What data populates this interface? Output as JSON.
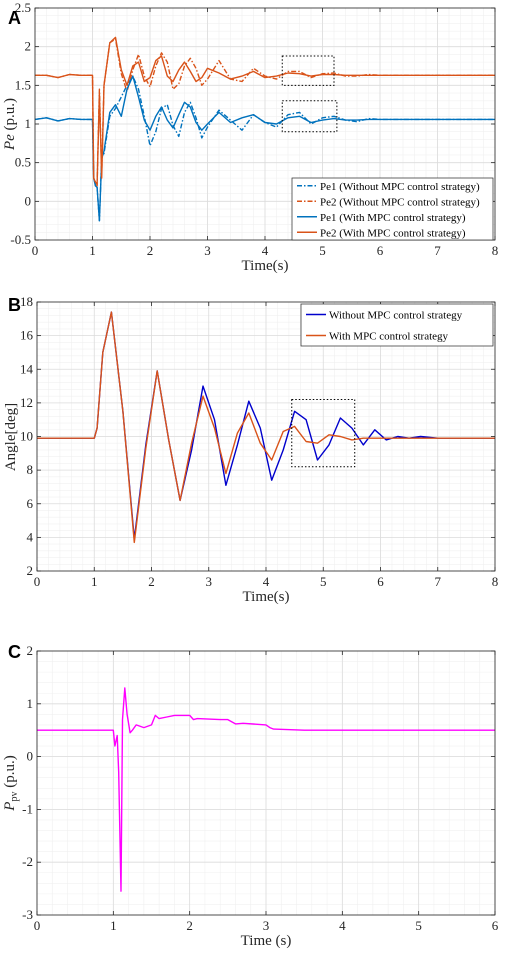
{
  "chart_data": [
    {
      "panel": "A",
      "type": "line",
      "xlabel": "Time(s)",
      "ylabel": "Pe (p.u.)",
      "xlim": [
        0,
        8
      ],
      "ylim": [
        -0.5,
        2.5
      ],
      "xticks": [
        "0",
        "1",
        "2",
        "3",
        "4",
        "5",
        "6",
        "7",
        "8"
      ],
      "yticks": [
        "-0.5",
        "0",
        "0.5",
        "1",
        "1.5",
        "2",
        "2.5"
      ],
      "grid": true,
      "minor_grid": true,
      "legend_position": "bottom-right",
      "insets": [
        {
          "x": [
            4.3,
            5.2
          ],
          "y": [
            1.5,
            1.88
          ]
        },
        {
          "x": [
            4.3,
            5.25
          ],
          "y": [
            0.9,
            1.3
          ]
        }
      ],
      "series": [
        {
          "name": "Pe1 (Without MPC control strategy)",
          "color": "#0072BD",
          "dash": true,
          "x": [
            0,
            0.2,
            0.4,
            0.6,
            0.8,
            1.0,
            1.02,
            1.05,
            1.08,
            1.12,
            1.16,
            1.2,
            1.3,
            1.4,
            1.5,
            1.6,
            1.7,
            1.8,
            1.9,
            2.0,
            2.1,
            2.2,
            2.3,
            2.4,
            2.5,
            2.6,
            2.7,
            2.8,
            2.9,
            3.0,
            3.2,
            3.4,
            3.6,
            3.8,
            4.0,
            4.2,
            4.4,
            4.6,
            4.8,
            5.0,
            5.2,
            5.4,
            5.6,
            5.8,
            6.0,
            6.5,
            7.0,
            7.5,
            8.0
          ],
          "y": [
            1.06,
            1.08,
            1.04,
            1.07,
            1.06,
            1.06,
            0.3,
            0.22,
            0.18,
            -0.25,
            0.58,
            0.62,
            1.1,
            1.2,
            1.35,
            1.5,
            1.62,
            1.45,
            1.1,
            0.72,
            0.9,
            1.2,
            1.25,
            0.98,
            0.84,
            1.15,
            1.28,
            1.08,
            0.82,
            0.96,
            1.18,
            1.05,
            0.92,
            1.12,
            1.02,
            0.96,
            1.12,
            1.15,
            1.0,
            1.08,
            1.1,
            1.05,
            1.03,
            1.07,
            1.06,
            1.06,
            1.06,
            1.06,
            1.06
          ]
        },
        {
          "name": "Pe2 (Without MPC control strategy)",
          "color": "#D95319",
          "dash": true,
          "x": [
            0,
            0.2,
            0.4,
            0.6,
            0.8,
            1.0,
            1.02,
            1.05,
            1.08,
            1.12,
            1.16,
            1.2,
            1.3,
            1.4,
            1.5,
            1.6,
            1.7,
            1.8,
            1.9,
            2.0,
            2.1,
            2.2,
            2.3,
            2.4,
            2.5,
            2.6,
            2.7,
            2.8,
            2.9,
            3.0,
            3.2,
            3.4,
            3.6,
            3.8,
            4.0,
            4.2,
            4.4,
            4.6,
            4.8,
            5.0,
            5.2,
            5.4,
            5.6,
            5.8,
            6.0,
            6.5,
            7.0,
            7.5,
            8.0
          ],
          "y": [
            1.63,
            1.63,
            1.6,
            1.64,
            1.63,
            1.63,
            0.3,
            0.25,
            0.2,
            1.45,
            0.35,
            1.5,
            2.05,
            2.1,
            1.65,
            1.42,
            1.7,
            1.9,
            1.62,
            1.48,
            1.75,
            1.92,
            1.8,
            1.45,
            1.52,
            1.75,
            1.85,
            1.72,
            1.5,
            1.58,
            1.82,
            1.58,
            1.55,
            1.72,
            1.62,
            1.58,
            1.68,
            1.68,
            1.6,
            1.65,
            1.66,
            1.62,
            1.62,
            1.64,
            1.63,
            1.63,
            1.63,
            1.63,
            1.63
          ]
        },
        {
          "name": "Pe1 (With MPC control strategy)",
          "color": "#0072BD",
          "dash": false,
          "x": [
            0,
            0.2,
            0.4,
            0.6,
            0.8,
            1.0,
            1.02,
            1.05,
            1.08,
            1.12,
            1.16,
            1.2,
            1.3,
            1.4,
            1.5,
            1.6,
            1.7,
            1.8,
            1.9,
            2.0,
            2.1,
            2.2,
            2.3,
            2.4,
            2.5,
            2.6,
            2.7,
            2.8,
            2.9,
            3.0,
            3.2,
            3.4,
            3.6,
            3.8,
            4.0,
            4.2,
            4.4,
            4.6,
            4.8,
            5.0,
            5.2,
            5.4,
            5.6,
            5.8,
            6.0,
            6.5,
            7.0,
            7.5,
            8.0
          ],
          "y": [
            1.06,
            1.08,
            1.04,
            1.07,
            1.06,
            1.06,
            0.3,
            0.2,
            0.18,
            -0.25,
            0.55,
            0.65,
            1.15,
            1.25,
            1.1,
            1.45,
            1.62,
            1.35,
            1.05,
            0.92,
            1.1,
            1.22,
            1.05,
            0.95,
            1.12,
            1.28,
            1.22,
            1.02,
            0.92,
            1.0,
            1.15,
            1.02,
            1.08,
            1.12,
            1.02,
            1.0,
            1.08,
            1.1,
            1.02,
            1.05,
            1.07,
            1.05,
            1.05,
            1.06,
            1.06,
            1.06,
            1.06,
            1.06,
            1.06
          ]
        },
        {
          "name": "Pe2 (With MPC control strategy)",
          "color": "#D95319",
          "dash": false,
          "x": [
            0,
            0.2,
            0.4,
            0.6,
            0.8,
            1.0,
            1.02,
            1.05,
            1.08,
            1.12,
            1.16,
            1.2,
            1.3,
            1.4,
            1.5,
            1.6,
            1.7,
            1.8,
            1.9,
            2.0,
            2.1,
            2.2,
            2.3,
            2.4,
            2.5,
            2.6,
            2.7,
            2.8,
            2.9,
            3.0,
            3.2,
            3.4,
            3.6,
            3.8,
            4.0,
            4.2,
            4.4,
            4.6,
            4.8,
            5.0,
            5.2,
            5.4,
            5.6,
            5.8,
            6.0,
            6.5,
            7.0,
            7.5,
            8.0
          ],
          "y": [
            1.63,
            1.63,
            1.6,
            1.64,
            1.63,
            1.63,
            0.3,
            0.25,
            0.22,
            1.4,
            0.3,
            1.5,
            2.05,
            2.12,
            1.7,
            1.5,
            1.75,
            1.8,
            1.55,
            1.6,
            1.82,
            1.88,
            1.62,
            1.55,
            1.7,
            1.8,
            1.68,
            1.55,
            1.6,
            1.72,
            1.66,
            1.58,
            1.62,
            1.68,
            1.6,
            1.62,
            1.66,
            1.65,
            1.62,
            1.64,
            1.64,
            1.63,
            1.63,
            1.63,
            1.63,
            1.63,
            1.63,
            1.63,
            1.63
          ]
        }
      ]
    },
    {
      "panel": "B",
      "type": "line",
      "xlabel": "Time(s)",
      "ylabel": "Angle[deg]",
      "xlim": [
        0,
        8
      ],
      "ylim": [
        2,
        18
      ],
      "xticks": [
        "0",
        "1",
        "2",
        "3",
        "4",
        "5",
        "6",
        "7",
        "8"
      ],
      "yticks": [
        "2",
        "4",
        "6",
        "8",
        "10",
        "12",
        "14",
        "16",
        "18"
      ],
      "grid": true,
      "minor_grid": true,
      "legend_position": "top-right",
      "insets": [
        {
          "x": [
            4.45,
            5.55
          ],
          "y": [
            8.2,
            12.2
          ]
        }
      ],
      "series": [
        {
          "name": "Without MPC control strategy",
          "color": "#0000CC",
          "dash": false,
          "x": [
            0,
            0.5,
            1.0,
            1.05,
            1.15,
            1.3,
            1.5,
            1.7,
            1.9,
            2.1,
            2.3,
            2.5,
            2.7,
            2.9,
            3.1,
            3.3,
            3.5,
            3.7,
            3.9,
            4.1,
            4.3,
            4.5,
            4.7,
            4.9,
            5.1,
            5.3,
            5.5,
            5.7,
            5.9,
            6.1,
            6.3,
            6.5,
            6.7,
            7.0,
            7.5,
            8.0
          ],
          "y": [
            9.9,
            9.9,
            9.9,
            10.5,
            15.0,
            17.4,
            11.5,
            3.9,
            9.5,
            13.9,
            9.8,
            6.2,
            9.2,
            13.0,
            11.0,
            7.1,
            9.5,
            12.1,
            10.5,
            7.4,
            9.2,
            11.5,
            11.0,
            8.6,
            9.5,
            11.1,
            10.5,
            9.5,
            10.4,
            9.8,
            10.0,
            9.9,
            10.0,
            9.9,
            9.9,
            9.9
          ]
        },
        {
          "name": "With MPC control strategy",
          "color": "#D95319",
          "dash": false,
          "x": [
            0,
            0.5,
            1.0,
            1.05,
            1.15,
            1.3,
            1.5,
            1.7,
            1.9,
            2.1,
            2.3,
            2.5,
            2.7,
            2.9,
            3.1,
            3.3,
            3.5,
            3.7,
            3.9,
            4.1,
            4.3,
            4.5,
            4.7,
            4.9,
            5.1,
            5.3,
            5.5,
            5.7,
            5.9,
            6.1,
            6.3,
            6.5,
            6.7,
            7.0,
            7.5,
            8.0
          ],
          "y": [
            9.9,
            9.9,
            9.9,
            10.5,
            15.0,
            17.4,
            11.5,
            3.7,
            9.3,
            13.9,
            9.8,
            6.2,
            9.6,
            12.4,
            10.5,
            7.8,
            10.2,
            11.4,
            9.6,
            8.6,
            10.3,
            10.6,
            9.7,
            9.6,
            10.1,
            10.0,
            9.8,
            9.9,
            9.9,
            9.9,
            9.9,
            9.9,
            9.9,
            9.9,
            9.9,
            9.9
          ]
        }
      ]
    },
    {
      "panel": "C",
      "type": "line",
      "xlabel": "Time (s)",
      "ylabel": "P_pv (p.u.)",
      "xlim": [
        0,
        6
      ],
      "ylim": [
        -3,
        2
      ],
      "xticks": [
        "0",
        "1",
        "2",
        "3",
        "4",
        "5",
        "6"
      ],
      "yticks": [
        "-3",
        "-2",
        "-1",
        "0",
        "1",
        "2"
      ],
      "grid": true,
      "minor_grid": true,
      "series": [
        {
          "name": "",
          "color": "#FF00FF",
          "dash": false,
          "x": [
            0,
            0.5,
            1.0,
            1.02,
            1.05,
            1.07,
            1.1,
            1.12,
            1.15,
            1.18,
            1.22,
            1.25,
            1.3,
            1.4,
            1.5,
            1.55,
            1.6,
            1.7,
            1.8,
            2.0,
            2.05,
            2.1,
            2.4,
            2.5,
            2.6,
            2.7,
            3.0,
            3.05,
            3.1,
            3.5,
            4.0,
            5.0,
            6.0
          ],
          "y": [
            0.5,
            0.5,
            0.5,
            0.2,
            0.4,
            -0.3,
            -2.55,
            0.7,
            1.3,
            0.8,
            0.45,
            0.5,
            0.6,
            0.55,
            0.6,
            0.78,
            0.72,
            0.75,
            0.78,
            0.78,
            0.7,
            0.72,
            0.7,
            0.7,
            0.62,
            0.63,
            0.6,
            0.55,
            0.52,
            0.5,
            0.5,
            0.5,
            0.5
          ]
        }
      ]
    }
  ]
}
